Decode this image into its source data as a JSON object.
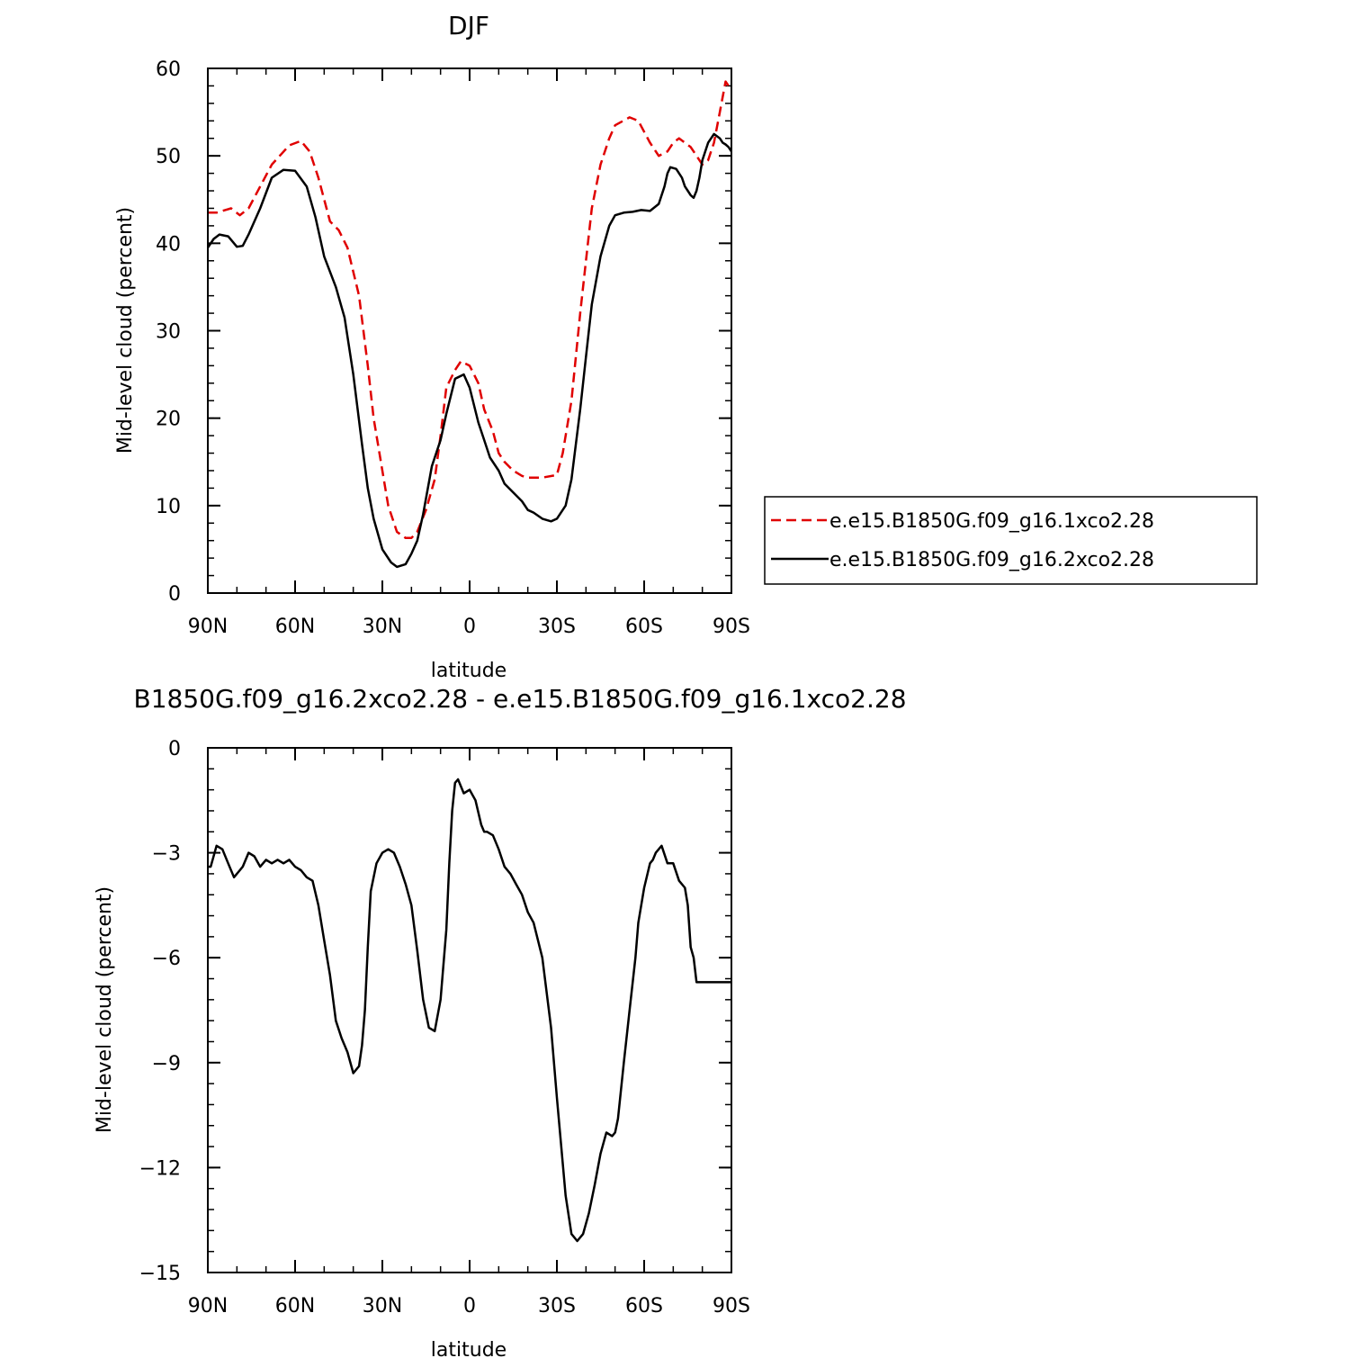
{
  "chart_data": [
    {
      "type": "line",
      "title": "DJF",
      "xlabel": "latitude",
      "ylabel": "Mid-level cloud (percent)",
      "xlim": [
        90,
        -90
      ],
      "ylim": [
        0,
        60
      ],
      "xticks": [
        {
          "v": 90,
          "label": "90N"
        },
        {
          "v": 60,
          "label": "60N"
        },
        {
          "v": 30,
          "label": "30N"
        },
        {
          "v": 0,
          "label": "0"
        },
        {
          "v": -30,
          "label": "30S"
        },
        {
          "v": -60,
          "label": "60S"
        },
        {
          "v": -90,
          "label": "90S"
        }
      ],
      "yticks": [
        {
          "v": 0,
          "label": "0"
        },
        {
          "v": 10,
          "label": "10"
        },
        {
          "v": 20,
          "label": "20"
        },
        {
          "v": 30,
          "label": "30"
        },
        {
          "v": 40,
          "label": "40"
        },
        {
          "v": 50,
          "label": "50"
        },
        {
          "v": 60,
          "label": "60"
        }
      ],
      "legend_position": "right",
      "series": [
        {
          "name": "e.e15.B1850G.f09_g16.1xco2.28",
          "color": "#e00000",
          "dash": "dashed",
          "x": [
            90,
            87,
            82,
            79,
            76,
            72,
            68,
            62,
            58,
            55,
            52,
            48,
            45,
            42,
            38,
            35,
            33,
            30,
            28,
            25,
            22,
            20,
            18,
            15,
            12,
            10,
            8,
            5,
            3,
            0,
            -3,
            -5,
            -8,
            -10,
            -12,
            -15,
            -18,
            -20,
            -25,
            -30,
            -32,
            -35,
            -38,
            -40,
            -42,
            -45,
            -48,
            -50,
            -55,
            -58,
            -62,
            -65,
            -68,
            -70,
            -72,
            -74,
            -76,
            -77,
            -78,
            -80,
            -82,
            -84,
            -86,
            -88,
            -89,
            -90
          ],
          "y": [
            43.5,
            43.5,
            44,
            43.2,
            44,
            46.5,
            49,
            51.2,
            51.7,
            50.5,
            47.5,
            42.5,
            41.5,
            39.5,
            34,
            26,
            20,
            14,
            10,
            7,
            6.3,
            6.3,
            7,
            9.5,
            13,
            18,
            23.5,
            25.5,
            26.5,
            26,
            24,
            21,
            18.5,
            16,
            15,
            14,
            13.4,
            13.2,
            13.2,
            13.5,
            16,
            22,
            32,
            38,
            44,
            49,
            52,
            53.5,
            54.4,
            54,
            51.5,
            50,
            50.5,
            51.5,
            52,
            51.5,
            51,
            50.5,
            50,
            49,
            49.5,
            51.5,
            55,
            58.5,
            58,
            57.5
          ]
        },
        {
          "name": "e.e15.B1850G.f09_g16.2xco2.28",
          "color": "#000000",
          "dash": "solid",
          "x": [
            90,
            88,
            86,
            83,
            80,
            78,
            76,
            72,
            68,
            64,
            60,
            56,
            53,
            50,
            46,
            43,
            40,
            37,
            35,
            33,
            30,
            27,
            25,
            22,
            20,
            18,
            16,
            13,
            10,
            8,
            5,
            2,
            0,
            -3,
            -5,
            -7,
            -10,
            -12,
            -15,
            -18,
            -20,
            -22,
            -25,
            -28,
            -30,
            -33,
            -35,
            -38,
            -40,
            -42,
            -45,
            -48,
            -50,
            -53,
            -56,
            -59,
            -62,
            -65,
            -67,
            -68,
            -69,
            -71,
            -73,
            -74,
            -75,
            -76,
            -77,
            -78,
            -79,
            -80,
            -82,
            -84,
            -86,
            -87,
            -88,
            -89,
            -90
          ],
          "y": [
            39.5,
            40.5,
            41,
            40.8,
            39.6,
            39.7,
            41,
            44,
            47.5,
            48.4,
            48.3,
            46.5,
            43,
            38.5,
            35,
            31.5,
            25,
            17,
            12,
            8.5,
            5,
            3.5,
            3,
            3.3,
            4.5,
            6,
            9,
            14.5,
            17.5,
            20.5,
            24.5,
            25,
            23.5,
            19.5,
            17.5,
            15.5,
            14,
            12.5,
            11.5,
            10.5,
            9.5,
            9.2,
            8.5,
            8.2,
            8.5,
            10,
            13,
            21,
            27,
            33,
            38.5,
            42,
            43.2,
            43.5,
            43.6,
            43.8,
            43.7,
            44.5,
            46.5,
            48,
            48.7,
            48.5,
            47.5,
            46.5,
            46,
            45.5,
            45.2,
            46,
            47.5,
            49.5,
            51.5,
            52.5,
            52,
            51.5,
            51.3,
            51,
            50.5
          ]
        }
      ]
    },
    {
      "type": "line",
      "title": "B1850G.f09_g16.2xco2.28 - e.e15.B1850G.f09_g16.1xco2.28",
      "xlabel": "latitude",
      "ylabel": "Mid-level cloud (percent)",
      "xlim": [
        90,
        -90
      ],
      "ylim": [
        -15,
        0
      ],
      "xticks": [
        {
          "v": 90,
          "label": "90N"
        },
        {
          "v": 60,
          "label": "60N"
        },
        {
          "v": 30,
          "label": "30N"
        },
        {
          "v": 0,
          "label": "0"
        },
        {
          "v": -30,
          "label": "30S"
        },
        {
          "v": -60,
          "label": "60S"
        },
        {
          "v": -90,
          "label": "90S"
        }
      ],
      "yticks": [
        {
          "v": 0,
          "label": "0"
        },
        {
          "v": -3,
          "label": "−3"
        },
        {
          "v": -6,
          "label": "−6"
        },
        {
          "v": -9,
          "label": "−9"
        },
        {
          "v": -12,
          "label": "−12"
        },
        {
          "v": -15,
          "label": "−15"
        }
      ],
      "series": [
        {
          "color": "#000000",
          "dash": "solid",
          "x": [
            90,
            89,
            87,
            85,
            83,
            81,
            79,
            78,
            76,
            74,
            72,
            70,
            68,
            66,
            64,
            62,
            60,
            58,
            56,
            54,
            52,
            50,
            48,
            46,
            44,
            42,
            40,
            38,
            37,
            36,
            35,
            34,
            32,
            30,
            28,
            26,
            24,
            22,
            20,
            18,
            16,
            14,
            12,
            10,
            8,
            7,
            6,
            5,
            4,
            2,
            0,
            -2,
            -4,
            -5,
            -6,
            -8,
            -10,
            -12,
            -14,
            -16,
            -18,
            -20,
            -22,
            -25,
            -28,
            -30,
            -33,
            -35,
            -37,
            -39,
            -41,
            -43,
            -45,
            -47,
            -49,
            -50,
            -51,
            -53,
            -55,
            -57,
            -58,
            -60,
            -62,
            -63,
            -64,
            -66,
            -68,
            -70,
            -72,
            -74,
            -75,
            -76,
            -77,
            -78,
            -79,
            -80,
            -82,
            -84,
            -85,
            -86,
            -88,
            -90
          ],
          "y": [
            -3.4,
            -3.4,
            -2.8,
            -2.9,
            -3.3,
            -3.7,
            -3.5,
            -3.4,
            -3.0,
            -3.1,
            -3.4,
            -3.2,
            -3.3,
            -3.2,
            -3.3,
            -3.2,
            -3.4,
            -3.5,
            -3.7,
            -3.8,
            -4.5,
            -5.5,
            -6.5,
            -7.8,
            -8.3,
            -8.7,
            -9.3,
            -9.1,
            -8.5,
            -7.5,
            -5.7,
            -4.1,
            -3.3,
            -3.0,
            -2.9,
            -3.0,
            -3.4,
            -3.9,
            -4.5,
            -5.8,
            -7.2,
            -8.0,
            -8.1,
            -7.2,
            -5.2,
            -3.3,
            -1.8,
            -1.0,
            -0.9,
            -1.3,
            -1.2,
            -1.5,
            -2.2,
            -2.4,
            -2.4,
            -2.5,
            -2.9,
            -3.4,
            -3.6,
            -3.9,
            -4.2,
            -4.7,
            -5.0,
            -6.0,
            -8.0,
            -10.0,
            -12.8,
            -13.9,
            -14.1,
            -13.9,
            -13.3,
            -12.5,
            -11.6,
            -11.0,
            -11.1,
            -11.0,
            -10.6,
            -9.0,
            -7.5,
            -6.0,
            -5.0,
            -4.0,
            -3.3,
            -3.2,
            -3.0,
            -2.8,
            -3.3,
            -3.3,
            -3.8,
            -4.0,
            -4.5,
            -5.7,
            -6.0,
            -6.7,
            -6.7,
            -6.7,
            -6.7,
            -6.7,
            -6.7,
            -6.7,
            -6.7,
            -6.7
          ]
        }
      ]
    }
  ]
}
